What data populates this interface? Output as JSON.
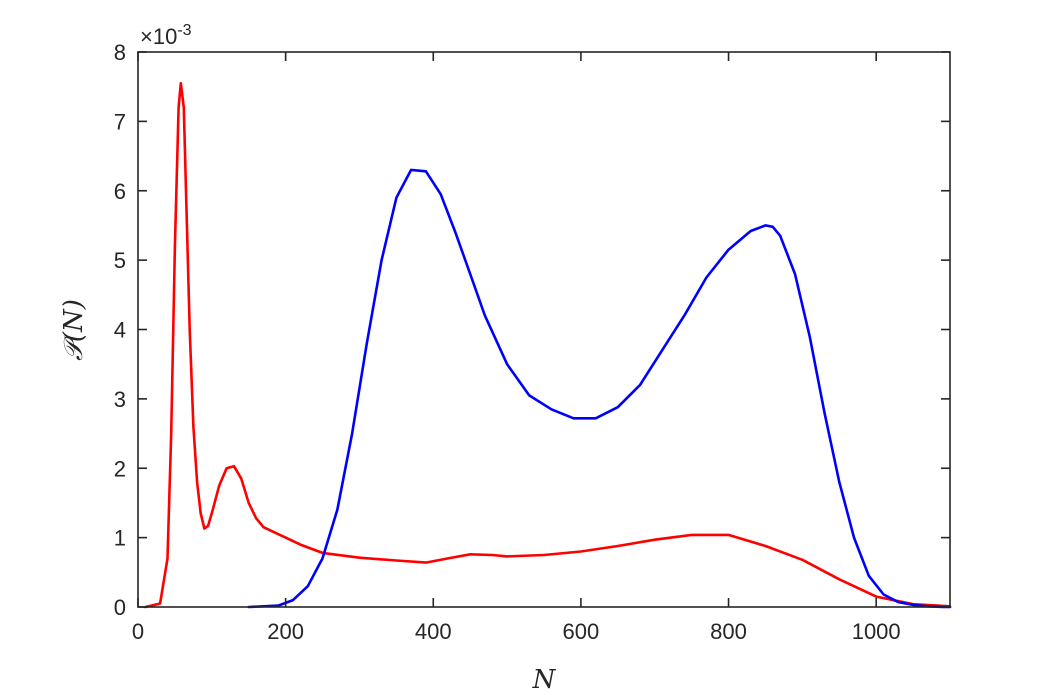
{
  "chart_data": {
    "type": "line",
    "xlabel": "N",
    "ylabel": "𝒫(N)",
    "y_exponent_label": "×10",
    "y_exponent_power": "-3",
    "xlim": [
      0,
      1100
    ],
    "ylim": [
      0,
      8
    ],
    "xticks": [
      0,
      200,
      400,
      600,
      800,
      1000
    ],
    "yticks": [
      0,
      1,
      2,
      3,
      4,
      5,
      6,
      7,
      8
    ],
    "grid": false,
    "colors": {
      "red_series": "#ff0000",
      "blue_series": "#0000ff",
      "axes": "#262626"
    },
    "series": [
      {
        "color": "#ff0000",
        "x": [
          10,
          30,
          40,
          45,
          50,
          55,
          58,
          62,
          65,
          70,
          75,
          80,
          85,
          90,
          95,
          100,
          110,
          120,
          130,
          140,
          150,
          160,
          170,
          180,
          190,
          200,
          220,
          250,
          300,
          350,
          390,
          420,
          450,
          480,
          500,
          550,
          600,
          650,
          700,
          750,
          800,
          850,
          900,
          950,
          1000,
          1050,
          1100
        ],
        "y": [
          0,
          0.05,
          0.7,
          2.5,
          5.2,
          7.2,
          7.55,
          7.2,
          6.0,
          4.0,
          2.6,
          1.8,
          1.35,
          1.13,
          1.17,
          1.35,
          1.75,
          2.0,
          2.03,
          1.85,
          1.5,
          1.28,
          1.15,
          1.1,
          1.05,
          1.0,
          0.9,
          0.78,
          0.71,
          0.67,
          0.64,
          0.7,
          0.76,
          0.75,
          0.73,
          0.75,
          0.8,
          0.88,
          0.97,
          1.04,
          1.04,
          0.88,
          0.68,
          0.4,
          0.15,
          0.04,
          0.01
        ]
      },
      {
        "color": "#0000ff",
        "x": [
          150,
          190,
          210,
          230,
          250,
          270,
          290,
          310,
          330,
          350,
          370,
          390,
          410,
          430,
          450,
          470,
          500,
          530,
          560,
          590,
          620,
          650,
          680,
          710,
          740,
          770,
          800,
          830,
          850,
          860,
          870,
          890,
          910,
          930,
          950,
          970,
          990,
          1010,
          1030,
          1050,
          1070,
          1090,
          1100
        ],
        "y": [
          0,
          0.02,
          0.1,
          0.3,
          0.7,
          1.4,
          2.5,
          3.8,
          5.0,
          5.9,
          6.3,
          6.28,
          5.95,
          5.4,
          4.8,
          4.2,
          3.5,
          3.05,
          2.85,
          2.72,
          2.72,
          2.88,
          3.2,
          3.7,
          4.2,
          4.75,
          5.15,
          5.42,
          5.5,
          5.48,
          5.35,
          4.8,
          3.9,
          2.8,
          1.8,
          1.0,
          0.45,
          0.18,
          0.07,
          0.03,
          0.01,
          0.0,
          0.0
        ]
      }
    ]
  }
}
